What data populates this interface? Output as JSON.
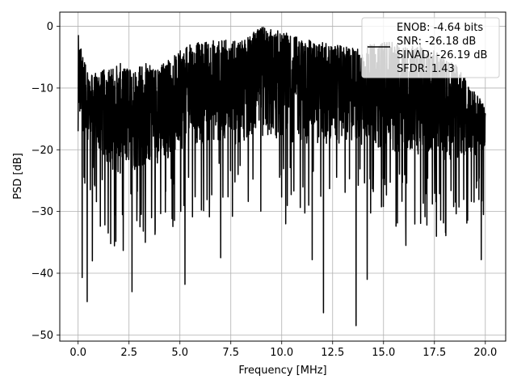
{
  "chart_data": {
    "type": "line",
    "xlabel": "Frequency [MHz]",
    "ylabel": "PSD [dB]",
    "xlim": [
      -0.9,
      21.0
    ],
    "ylim": [
      -51.0,
      2.3
    ],
    "xticks": [
      0.0,
      2.5,
      5.0,
      7.5,
      10.0,
      12.5,
      15.0,
      17.5,
      20.0
    ],
    "xtick_labels": [
      "0.0",
      "2.5",
      "5.0",
      "7.5",
      "10.0",
      "12.5",
      "15.0",
      "17.5",
      "20.0"
    ],
    "yticks": [
      0,
      -10,
      -20,
      -30,
      -40,
      -50
    ],
    "ytick_labels": [
      "0",
      "−10",
      "−20",
      "−30",
      "−40",
      "−50"
    ],
    "grid": true,
    "legend_position": "top-right",
    "legend_entries": [
      "ENOB: -4.64 bits",
      "SNR: -26.18 dB",
      "SINAD: -26.19 dB",
      "SFDR: 1.43"
    ],
    "series": [
      {
        "color": "#000000",
        "x_range": [
          0.0,
          20.0
        ],
        "envelope_top": [
          [
            0,
            -1.5
          ],
          [
            0.5,
            -8
          ],
          [
            2,
            -6
          ],
          [
            4,
            -6
          ],
          [
            5.5,
            -3
          ],
          [
            6.5,
            -2
          ],
          [
            8,
            -2.5
          ],
          [
            9.1,
            0.2
          ],
          [
            11,
            -2
          ],
          [
            13.5,
            -3.5
          ],
          [
            15,
            -2.5
          ],
          [
            17,
            -3
          ],
          [
            18.5,
            -6
          ],
          [
            20,
            -13
          ]
        ],
        "envelope_bottom": [
          [
            0,
            -18
          ],
          [
            2,
            -28
          ],
          [
            4,
            -25
          ],
          [
            6,
            -22
          ],
          [
            8,
            -22
          ],
          [
            10,
            -22
          ],
          [
            12,
            -22
          ],
          [
            14,
            -22
          ],
          [
            16,
            -24
          ],
          [
            18,
            -25
          ],
          [
            20,
            -22
          ]
        ],
        "deep_nulls": [
          {
            "x": 0.2,
            "y": -40.7
          },
          {
            "x": 0.45,
            "y": -44.6
          },
          {
            "x": 2.65,
            "y": -43.0
          },
          {
            "x": 5.25,
            "y": -41.8
          },
          {
            "x": 12.05,
            "y": -46.4
          },
          {
            "x": 13.65,
            "y": -48.5
          },
          {
            "x": 14.2,
            "y": -41.0
          },
          {
            "x": 0.7,
            "y": -38.0
          },
          {
            "x": 7.0,
            "y": -37.5
          },
          {
            "x": 11.5,
            "y": -37.8
          },
          {
            "x": 19.8,
            "y": -37.8
          },
          {
            "x": 1.6,
            "y": -35.2
          },
          {
            "x": 3.3,
            "y": -35.0
          },
          {
            "x": 10.2,
            "y": -32.0
          },
          {
            "x": 16.1,
            "y": -35.5
          },
          {
            "x": 17.6,
            "y": -34.0
          }
        ]
      }
    ]
  }
}
